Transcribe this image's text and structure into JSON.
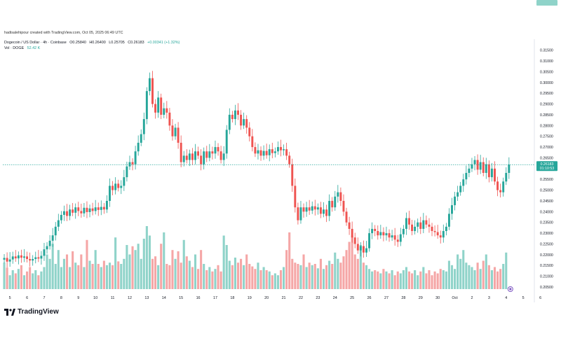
{
  "caption": "hadisalehipour created with TradingView.com, Oct 05, 2025 06:49 UTC",
  "legend": {
    "symbol": "Dogecoin / US Dollar · 4h · Coinbase",
    "open": "O0.25840",
    "high": "H0.26400",
    "low": "L0.25705",
    "close": "C0.26183",
    "change": "+0.00341 (+1.32%)",
    "vol_label": "Vol · DOGE",
    "vol_value": "52.42 K"
  },
  "price_tag": {
    "price": "0.26183",
    "countdown": "01:10:53"
  },
  "vol_tag": "52.42 K",
  "brand": {
    "name": "TradingView",
    "icon": "tradingview-logo-icon"
  },
  "colors": {
    "up": "#26a69a",
    "down": "#ef5350",
    "up_vol": "#8fd3c9",
    "down_vol": "#f5a6a6"
  },
  "chart_data": {
    "type": "candlestick",
    "timeframe": "4h",
    "ylim": [
      0.205,
      0.3175
    ],
    "yticks": [
      "0.31500",
      "0.31000",
      "0.30500",
      "0.30000",
      "0.29500",
      "0.29000",
      "0.28500",
      "0.28000",
      "0.27500",
      "0.27000",
      "0.26500",
      "0.26000",
      "0.25500",
      "0.25000",
      "0.24500",
      "0.24000",
      "0.23500",
      "0.23000",
      "0.22500",
      "0.22000",
      "0.21500",
      "0.21000",
      "0.20500"
    ],
    "xticks": [
      {
        "label": "5",
        "idx": 2
      },
      {
        "label": "6",
        "idx": 8
      },
      {
        "label": "7",
        "idx": 14
      },
      {
        "label": "8",
        "idx": 20
      },
      {
        "label": "9",
        "idx": 26
      },
      {
        "label": "10",
        "idx": 32
      },
      {
        "label": "11",
        "idx": 38
      },
      {
        "label": "12",
        "idx": 44
      },
      {
        "label": "13",
        "idx": 50
      },
      {
        "label": "14",
        "idx": 56
      },
      {
        "label": "15",
        "idx": 62
      },
      {
        "label": "16",
        "idx": 68
      },
      {
        "label": "17",
        "idx": 74
      },
      {
        "label": "18",
        "idx": 80
      },
      {
        "label": "19",
        "idx": 86
      },
      {
        "label": "20",
        "idx": 92
      },
      {
        "label": "21",
        "idx": 98
      },
      {
        "label": "22",
        "idx": 104
      },
      {
        "label": "23",
        "idx": 110
      },
      {
        "label": "24",
        "idx": 116
      },
      {
        "label": "25",
        "idx": 122
      },
      {
        "label": "26",
        "idx": 128
      },
      {
        "label": "27",
        "idx": 134
      },
      {
        "label": "28",
        "idx": 140
      },
      {
        "label": "29",
        "idx": 146
      },
      {
        "label": "30",
        "idx": 152
      },
      {
        "label": "Oct",
        "idx": 158
      },
      {
        "label": "2",
        "idx": 164
      },
      {
        "label": "3",
        "idx": 170
      },
      {
        "label": "4",
        "idx": 176
      },
      {
        "label": "5",
        "idx": 182
      },
      {
        "label": "6",
        "idx": 188
      }
    ],
    "current_price": 0.26183,
    "closes": [
      0.2185,
      0.2168,
      0.2178,
      0.2192,
      0.2183,
      0.2197,
      0.2186,
      0.2192,
      0.218,
      0.2173,
      0.218,
      0.2188,
      0.2182,
      0.2195,
      0.2225,
      0.224,
      0.2265,
      0.229,
      0.233,
      0.236,
      0.2385,
      0.2402,
      0.238,
      0.241,
      0.2395,
      0.242,
      0.2403,
      0.2392,
      0.2418,
      0.2398,
      0.2415,
      0.2403,
      0.242,
      0.2408,
      0.2422,
      0.241,
      0.245,
      0.252,
      0.25,
      0.253,
      0.251,
      0.252,
      0.256,
      0.261,
      0.263,
      0.262,
      0.268,
      0.272,
      0.276,
      0.283,
      0.296,
      0.302,
      0.29,
      0.286,
      0.293,
      0.285,
      0.288,
      0.286,
      0.28,
      0.275,
      0.279,
      0.272,
      0.263,
      0.266,
      0.264,
      0.267,
      0.264,
      0.268,
      0.266,
      0.262,
      0.268,
      0.265,
      0.268,
      0.267,
      0.27,
      0.268,
      0.264,
      0.267,
      0.278,
      0.285,
      0.283,
      0.287,
      0.285,
      0.28,
      0.283,
      0.279,
      0.275,
      0.27,
      0.267,
      0.2685,
      0.266,
      0.2682,
      0.2662,
      0.269,
      0.2672,
      0.268,
      0.27,
      0.2685,
      0.269,
      0.266,
      0.262,
      0.252,
      0.242,
      0.236,
      0.242,
      0.24,
      0.242,
      0.2405,
      0.2425,
      0.241,
      0.242,
      0.239,
      0.241,
      0.238,
      0.245,
      0.242,
      0.247,
      0.249,
      0.245,
      0.24,
      0.235,
      0.232,
      0.228,
      0.225,
      0.222,
      0.224,
      0.221,
      0.223,
      0.23,
      0.232,
      0.231,
      0.229,
      0.2305,
      0.229,
      0.23,
      0.228,
      0.229,
      0.227,
      0.226,
      0.2295,
      0.232,
      0.237,
      0.234,
      0.231,
      0.233,
      0.235,
      0.232,
      0.236,
      0.234,
      0.233,
      0.231,
      0.2305,
      0.229,
      0.228,
      0.231,
      0.233,
      0.239,
      0.243,
      0.247,
      0.249,
      0.252,
      0.255,
      0.258,
      0.26,
      0.262,
      0.264,
      0.2595,
      0.263,
      0.258,
      0.262,
      0.256,
      0.26,
      0.254,
      0.25,
      0.249,
      0.254,
      0.258,
      0.26183
    ],
    "volume": [
      0.42,
      0.34,
      0.22,
      0.3,
      0.25,
      0.32,
      0.38,
      0.22,
      0.28,
      0.35,
      0.25,
      0.3,
      0.22,
      0.28,
      0.35,
      0.55,
      0.48,
      0.72,
      0.4,
      0.62,
      0.35,
      0.48,
      0.55,
      0.35,
      0.6,
      0.42,
      0.38,
      0.55,
      0.35,
      0.78,
      0.45,
      0.4,
      0.62,
      0.4,
      0.35,
      0.45,
      0.38,
      0.42,
      0.38,
      0.82,
      0.44,
      0.4,
      0.48,
      0.7,
      0.55,
      0.68,
      0.62,
      0.72,
      0.48,
      0.8,
      1.0,
      0.85,
      0.48,
      0.52,
      0.38,
      0.72,
      0.9,
      0.4,
      0.38,
      0.62,
      0.48,
      0.6,
      0.42,
      0.78,
      0.52,
      0.45,
      0.35,
      0.55,
      0.32,
      0.62,
      0.4,
      0.3,
      0.35,
      0.28,
      0.32,
      0.38,
      0.28,
      0.85,
      0.7,
      0.45,
      0.38,
      0.5,
      0.42,
      0.48,
      0.38,
      0.55,
      0.4,
      0.36,
      0.32,
      0.42,
      0.3,
      0.35,
      0.3,
      0.28,
      0.22,
      0.25,
      0.22,
      0.3,
      0.35,
      0.62,
      0.9,
      0.48,
      0.42,
      0.4,
      0.38,
      0.55,
      0.35,
      0.42,
      0.38,
      0.4,
      0.33,
      0.48,
      0.32,
      0.38,
      0.45,
      0.4,
      0.58,
      0.48,
      0.42,
      0.52,
      0.62,
      0.75,
      0.85,
      0.55,
      0.48,
      0.7,
      0.42,
      0.38,
      0.32,
      0.28,
      0.3,
      0.28,
      0.25,
      0.32,
      0.28,
      0.25,
      0.3,
      0.22,
      0.28,
      0.25,
      0.3,
      0.35,
      0.28,
      0.25,
      0.3,
      0.22,
      0.28,
      0.35,
      0.25,
      0.3,
      0.22,
      0.28,
      0.25,
      0.32,
      0.3,
      0.28,
      0.45,
      0.38,
      0.32,
      0.55,
      0.48,
      0.62,
      0.42,
      0.38,
      0.35,
      0.3,
      0.42,
      0.32,
      0.45,
      0.55,
      0.38,
      0.3,
      0.35,
      0.28,
      0.32,
      0.4,
      0.58
    ]
  }
}
